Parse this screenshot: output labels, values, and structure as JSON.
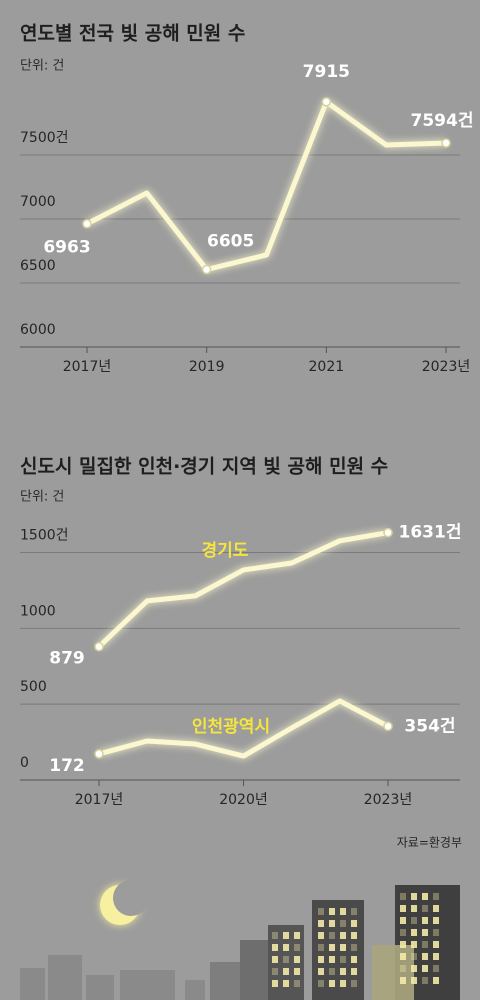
{
  "chart_data": [
    {
      "type": "line",
      "title": "연도별 전국 빛 공해 민원 수",
      "ylabel": "단위: 건",
      "categories": [
        "2017년",
        null,
        "2019",
        null,
        "2021",
        null,
        "2023년"
      ],
      "values": [
        6963,
        7203,
        6605,
        6719,
        7915,
        7578,
        7594
      ],
      "value_labels": [
        "6963",
        null,
        "6605",
        null,
        "7915",
        null,
        "7594건"
      ],
      "color": "#fbf8cf",
      "ylim": [
        6000,
        8000
      ],
      "yticks": [
        6000,
        6500,
        7000,
        {
          "value": 7500,
          "label": "7500건"
        }
      ],
      "grid": true
    },
    {
      "type": "line",
      "title": "신도시 밀집한 인천·경기 지역 빛 공해 민원 수",
      "ylabel": "단위: 건",
      "categories": [
        "2017년",
        null,
        null,
        "2020년",
        null,
        null,
        "2023년"
      ],
      "series": [
        {
          "name": "경기도",
          "color": "#fbf8cf",
          "values": [
            879,
            1181,
            1214,
            1385,
            1431,
            1577,
            1631
          ],
          "value_labels": [
            "879",
            null,
            null,
            null,
            null,
            null,
            "1631건"
          ]
        },
        {
          "name": "인천광역시",
          "color": "#fbf8cf",
          "values": [
            172,
            257,
            237,
            158,
            343,
            521,
            354
          ],
          "value_labels": [
            "172",
            null,
            null,
            null,
            null,
            null,
            "354건"
          ]
        }
      ],
      "ylim": [
        0,
        1800
      ],
      "yticks": [
        0,
        500,
        1000,
        {
          "value": 1500,
          "label": "1500건"
        }
      ],
      "grid": true
    }
  ],
  "source": "자료=환경부"
}
